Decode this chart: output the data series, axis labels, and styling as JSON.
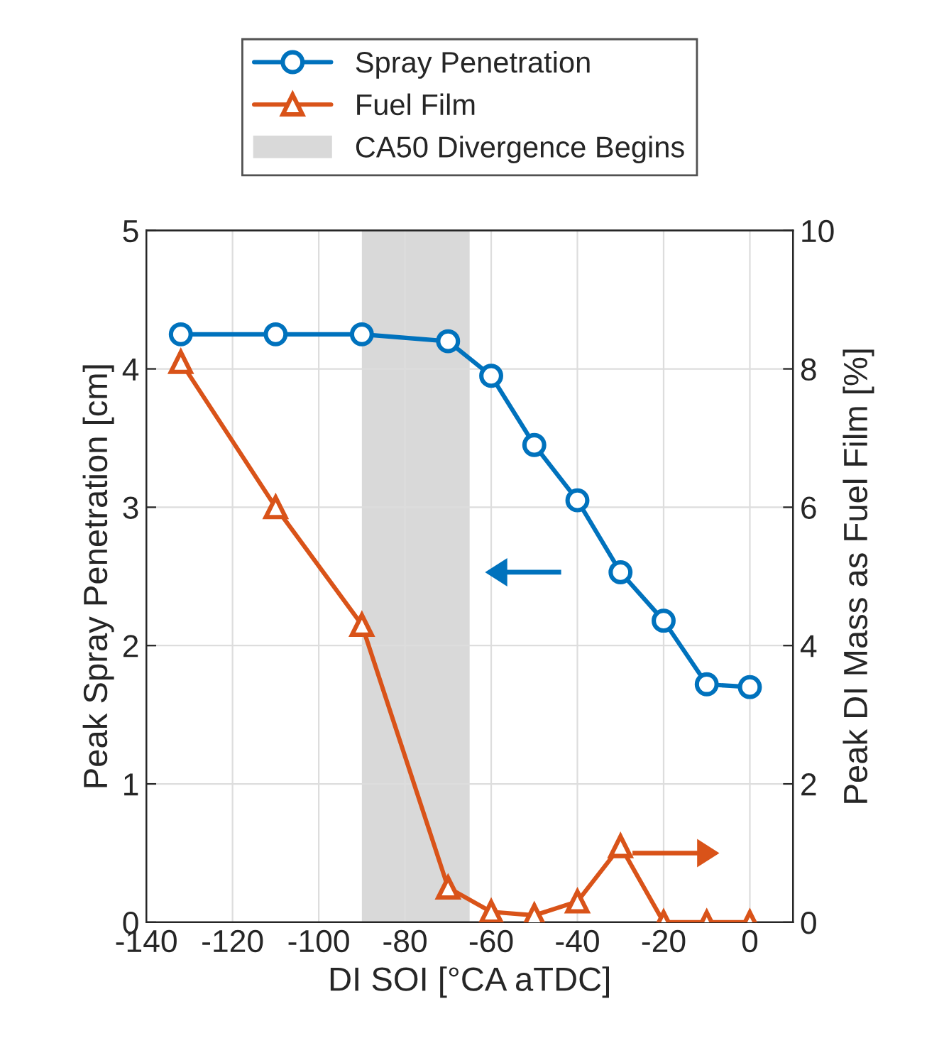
{
  "chart_data": {
    "type": "line",
    "xlabel": "DI SOI [°CA aTDC]",
    "ylabel": "Peak Spray Penetration [cm]",
    "y2label": "Peak DI Mass as Fuel Film [%]",
    "x": [
      -132,
      -110,
      -90,
      -70,
      -60,
      -50,
      -40,
      -30,
      -20,
      -10,
      0
    ],
    "series": [
      {
        "name": "Spray Penetration",
        "color": "#0072bd",
        "marker": "circle",
        "values": [
          4.25,
          4.25,
          4.25,
          4.2,
          3.95,
          3.45,
          3.05,
          2.53,
          2.18,
          1.72,
          1.7
        ]
      },
      {
        "name": "Fuel Film",
        "color": "#d95319",
        "marker": "triangle",
        "axis": "y2",
        "values": [
          8.1,
          6.0,
          4.3,
          0.5,
          0.15,
          0.1,
          0.3,
          1.1,
          0,
          0,
          0
        ]
      }
    ],
    "bands": [
      {
        "axis": "x",
        "from": -90,
        "to": -65,
        "label": "CA50 Divergence Begins",
        "color": "#d9d9d9"
      }
    ],
    "xlim": [
      -140,
      10
    ],
    "xticks": [
      -140,
      -120,
      -100,
      -80,
      -60,
      -40,
      -20,
      0
    ],
    "ylim": [
      0,
      5
    ],
    "yticks": [
      0,
      1,
      2,
      3,
      4,
      5
    ],
    "y2lim": [
      0,
      10
    ],
    "y2ticks": [
      0,
      2,
      4,
      6,
      8,
      10
    ],
    "grid": true,
    "legend": "top"
  }
}
